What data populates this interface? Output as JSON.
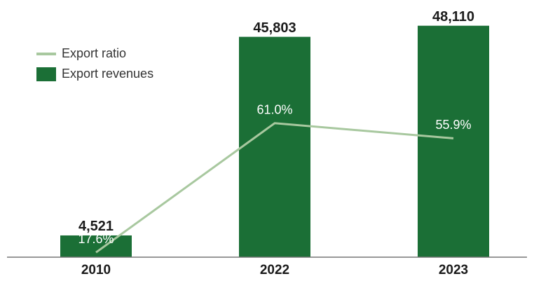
{
  "chart_data": {
    "type": "bar",
    "categories": [
      "2010",
      "2022",
      "2023"
    ],
    "series": [
      {
        "name": "Export ratio",
        "type": "line",
        "axis": "y2",
        "color": "#a8c89f",
        "values": [
          17.6,
          61.0,
          55.9
        ],
        "value_labels": [
          "17.6%",
          "61.0%",
          "55.9%"
        ]
      },
      {
        "name": "Export revenues",
        "type": "bar",
        "color": "#1b6f36",
        "values": [
          4521,
          45803,
          48110
        ],
        "value_labels": [
          "4,521",
          "45,803",
          "48,110"
        ]
      }
    ],
    "ylim": [
      0,
      52000
    ],
    "y2lim": [
      16,
      100
    ],
    "legend": "upper left"
  }
}
